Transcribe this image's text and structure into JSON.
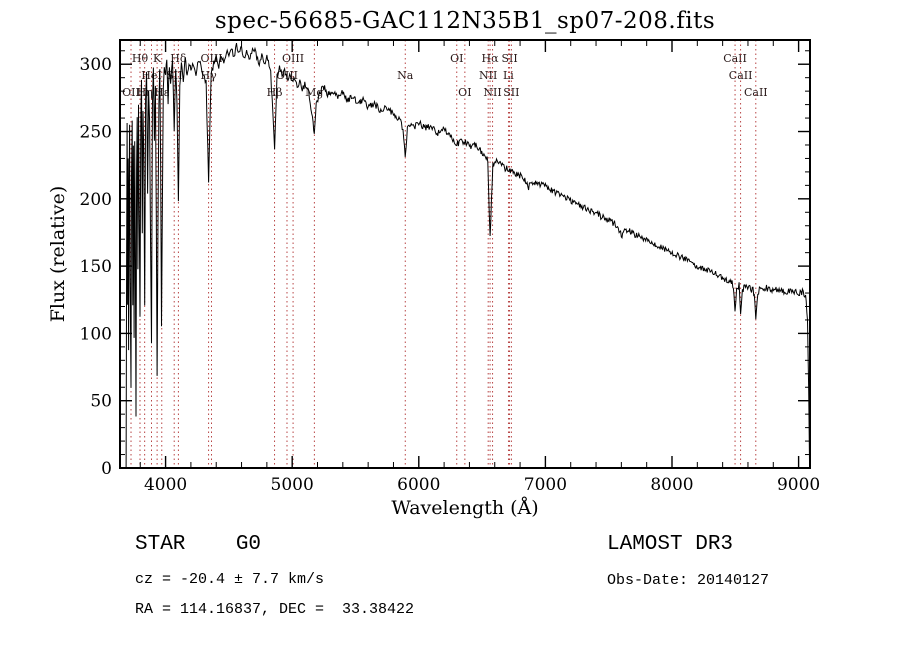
{
  "title": "spec-56685-GAC112N35B1_sp07-208.fits",
  "colors": {
    "spectrum_line": "#000000",
    "marker_line": "#b03030",
    "marker_label": "#2a1a1a",
    "axis": "#000000",
    "background": "#ffffff"
  },
  "footer": {
    "class_label": "STAR    G0",
    "cz": "cz = -20.4 ± 7.7 km/s",
    "coords": "RA = 114.16837, DEC =  33.38422",
    "survey": "LAMOST DR3",
    "obs_date": "Obs-Date: 20140127"
  },
  "chart_data": {
    "type": "line",
    "title": "spec-56685-GAC112N35B1_sp07-208.fits",
    "xlabel": "Wavelength (Å)",
    "ylabel": "Flux (relative)",
    "xlim": [
      3640,
      9090
    ],
    "ylim": [
      0,
      318
    ],
    "xticks": [
      4000,
      5000,
      6000,
      7000,
      8000,
      9000
    ],
    "yticks": [
      0,
      50,
      100,
      150,
      200,
      250,
      300
    ],
    "grid": false,
    "legend": "none",
    "noise_amplitude": 2.5,
    "line_markers": [
      {
        "label": "Hθ",
        "wavelength": 3798,
        "row": 1
      },
      {
        "label": "K",
        "wavelength": 3933,
        "row": 1
      },
      {
        "label": "Hδ",
        "wavelength": 4101,
        "row": 1
      },
      {
        "label": "OIII",
        "wavelength": 4363,
        "row": 1
      },
      {
        "label": "OIII",
        "wavelength": 5007,
        "row": 1
      },
      {
        "label": "OI",
        "wavelength": 6300,
        "row": 1
      },
      {
        "label": "Hα",
        "wavelength": 6563,
        "row": 1
      },
      {
        "label": "SII",
        "wavelength": 6717,
        "row": 1
      },
      {
        "label": "CaII",
        "wavelength": 8498,
        "row": 1
      },
      {
        "label": "HeI",
        "wavelength": 3889,
        "row": 2
      },
      {
        "label": "SII",
        "wavelength": 4068,
        "row": 2
      },
      {
        "label": "Hγ",
        "wavelength": 4340,
        "row": 2
      },
      {
        "label": "OIII",
        "wavelength": 4959,
        "row": 2
      },
      {
        "label": "Na",
        "wavelength": 5893,
        "row": 2
      },
      {
        "label": "NII",
        "wavelength": 6548,
        "row": 2
      },
      {
        "label": "Li",
        "wavelength": 6708,
        "row": 2
      },
      {
        "label": "CaII",
        "wavelength": 8542,
        "row": 2
      },
      {
        "label": "OII",
        "wavelength": 3727,
        "row": 3
      },
      {
        "label": "Hη",
        "wavelength": 3835,
        "row": 3
      },
      {
        "label": "Hε",
        "wavelength": 3970,
        "row": 3
      },
      {
        "label": "Hβ",
        "wavelength": 4861,
        "row": 3
      },
      {
        "label": "Mg",
        "wavelength": 5175,
        "row": 3
      },
      {
        "label": "OI",
        "wavelength": 6364,
        "row": 3
      },
      {
        "label": "NII",
        "wavelength": 6583,
        "row": 3
      },
      {
        "label": "SII",
        "wavelength": 6731,
        "row": 3
      },
      {
        "label": "CaII",
        "wavelength": 8662,
        "row": 3
      }
    ],
    "points": [
      [
        3688,
        2
      ],
      [
        3692,
        150
      ],
      [
        3696,
        255
      ],
      [
        3700,
        120
      ],
      [
        3704,
        230
      ],
      [
        3708,
        90
      ],
      [
        3712,
        205
      ],
      [
        3716,
        255
      ],
      [
        3720,
        140
      ],
      [
        3724,
        95
      ],
      [
        3727,
        60
      ],
      [
        3731,
        215
      ],
      [
        3736,
        258
      ],
      [
        3741,
        120
      ],
      [
        3746,
        238
      ],
      [
        3751,
        95
      ],
      [
        3756,
        242
      ],
      [
        3761,
        170
      ],
      [
        3766,
        38
      ],
      [
        3771,
        222
      ],
      [
        3776,
        262
      ],
      [
        3781,
        150
      ],
      [
        3786,
        272
      ],
      [
        3791,
        205
      ],
      [
        3798,
        112
      ],
      [
        3804,
        258
      ],
      [
        3810,
        288
      ],
      [
        3816,
        172
      ],
      [
        3822,
        266
      ],
      [
        3828,
        232
      ],
      [
        3835,
        122
      ],
      [
        3842,
        272
      ],
      [
        3850,
        292
      ],
      [
        3858,
        205
      ],
      [
        3866,
        282
      ],
      [
        3874,
        258
      ],
      [
        3882,
        165
      ],
      [
        3889,
        95
      ],
      [
        3896,
        268
      ],
      [
        3904,
        296
      ],
      [
        3912,
        242
      ],
      [
        3920,
        282
      ],
      [
        3927,
        185
      ],
      [
        3933,
        68
      ],
      [
        3940,
        185
      ],
      [
        3947,
        272
      ],
      [
        3954,
        296
      ],
      [
        3961,
        232
      ],
      [
        3968,
        105
      ],
      [
        3975,
        195
      ],
      [
        3982,
        282
      ],
      [
        3990,
        300
      ],
      [
        4000,
        292
      ],
      [
        4010,
        305
      ],
      [
        4020,
        272
      ],
      [
        4030,
        300
      ],
      [
        4040,
        287
      ],
      [
        4055,
        302
      ],
      [
        4068,
        252
      ],
      [
        4080,
        296
      ],
      [
        4090,
        272
      ],
      [
        4101,
        197
      ],
      [
        4112,
        282
      ],
      [
        4125,
        300
      ],
      [
        4140,
        287
      ],
      [
        4155,
        304
      ],
      [
        4170,
        292
      ],
      [
        4185,
        300
      ],
      [
        4200,
        295
      ],
      [
        4220,
        301
      ],
      [
        4240,
        292
      ],
      [
        4260,
        304
      ],
      [
        4280,
        298
      ],
      [
        4300,
        291
      ],
      [
        4320,
        286
      ],
      [
        4340,
        214
      ],
      [
        4360,
        291
      ],
      [
        4380,
        301
      ],
      [
        4400,
        305
      ],
      [
        4420,
        298
      ],
      [
        4440,
        308
      ],
      [
        4460,
        301
      ],
      [
        4480,
        310
      ],
      [
        4500,
        305
      ],
      [
        4520,
        312
      ],
      [
        4540,
        306
      ],
      [
        4560,
        314
      ],
      [
        4580,
        308
      ],
      [
        4600,
        312
      ],
      [
        4620,
        305
      ],
      [
        4640,
        310
      ],
      [
        4660,
        304
      ],
      [
        4680,
        308
      ],
      [
        4700,
        312
      ],
      [
        4720,
        306
      ],
      [
        4740,
        301
      ],
      [
        4760,
        308
      ],
      [
        4780,
        299
      ],
      [
        4800,
        305
      ],
      [
        4830,
        296
      ],
      [
        4861,
        236
      ],
      [
        4880,
        291
      ],
      [
        4900,
        298
      ],
      [
        4920,
        292
      ],
      [
        4940,
        296
      ],
      [
        4960,
        289
      ],
      [
        4980,
        293
      ],
      [
        5000,
        286
      ],
      [
        5020,
        290
      ],
      [
        5040,
        284
      ],
      [
        5060,
        288
      ],
      [
        5080,
        281
      ],
      [
        5100,
        285
      ],
      [
        5130,
        279
      ],
      [
        5160,
        262
      ],
      [
        5175,
        246
      ],
      [
        5190,
        271
      ],
      [
        5220,
        280
      ],
      [
        5250,
        283
      ],
      [
        5280,
        278
      ],
      [
        5320,
        281
      ],
      [
        5360,
        276
      ],
      [
        5400,
        279
      ],
      [
        5440,
        273
      ],
      [
        5480,
        276
      ],
      [
        5520,
        271
      ],
      [
        5560,
        273
      ],
      [
        5600,
        268
      ],
      [
        5650,
        270
      ],
      [
        5700,
        266
      ],
      [
        5750,
        268
      ],
      [
        5800,
        263
      ],
      [
        5850,
        259
      ],
      [
        5875,
        252
      ],
      [
        5893,
        233
      ],
      [
        5910,
        252
      ],
      [
        5940,
        257
      ],
      [
        5970,
        254
      ],
      [
        6000,
        257
      ],
      [
        6050,
        252
      ],
      [
        6100,
        254
      ],
      [
        6150,
        249
      ],
      [
        6200,
        251
      ],
      [
        6250,
        246
      ],
      [
        6300,
        241
      ],
      [
        6350,
        243
      ],
      [
        6400,
        239
      ],
      [
        6440,
        241
      ],
      [
        6480,
        236
      ],
      [
        6520,
        232
      ],
      [
        6545,
        228
      ],
      [
        6563,
        171
      ],
      [
        6585,
        226
      ],
      [
        6620,
        228
      ],
      [
        6660,
        224
      ],
      [
        6700,
        222
      ],
      [
        6740,
        220
      ],
      [
        6780,
        218
      ],
      [
        6820,
        216
      ],
      [
        6867,
        209
      ],
      [
        6900,
        213
      ],
      [
        6940,
        211
      ],
      [
        7000,
        209
      ],
      [
        7060,
        206
      ],
      [
        7120,
        203
      ],
      [
        7180,
        200
      ],
      [
        7240,
        197
      ],
      [
        7300,
        194
      ],
      [
        7360,
        191
      ],
      [
        7420,
        188
      ],
      [
        7480,
        185
      ],
      [
        7540,
        182
      ],
      [
        7594,
        176
      ],
      [
        7605,
        171
      ],
      [
        7620,
        177
      ],
      [
        7660,
        176
      ],
      [
        7720,
        173
      ],
      [
        7780,
        170
      ],
      [
        7840,
        168
      ],
      [
        7900,
        165
      ],
      [
        7960,
        162
      ],
      [
        8020,
        159
      ],
      [
        8080,
        156
      ],
      [
        8140,
        153
      ],
      [
        8200,
        150
      ],
      [
        8260,
        147
      ],
      [
        8320,
        145
      ],
      [
        8380,
        142
      ],
      [
        8440,
        140
      ],
      [
        8475,
        137
      ],
      [
        8490,
        130
      ],
      [
        8498,
        118
      ],
      [
        8510,
        132
      ],
      [
        8530,
        136
      ],
      [
        8542,
        114
      ],
      [
        8556,
        132
      ],
      [
        8580,
        135
      ],
      [
        8610,
        134
      ],
      [
        8640,
        132
      ],
      [
        8655,
        124
      ],
      [
        8662,
        112
      ],
      [
        8672,
        126
      ],
      [
        8690,
        133
      ],
      [
        8740,
        134
      ],
      [
        8790,
        132
      ],
      [
        8840,
        133
      ],
      [
        8890,
        131
      ],
      [
        8940,
        132
      ],
      [
        8990,
        130
      ],
      [
        9030,
        131
      ],
      [
        9055,
        129
      ],
      [
        9070,
        110
      ],
      [
        9080,
        55
      ],
      [
        9086,
        5
      ]
    ]
  }
}
